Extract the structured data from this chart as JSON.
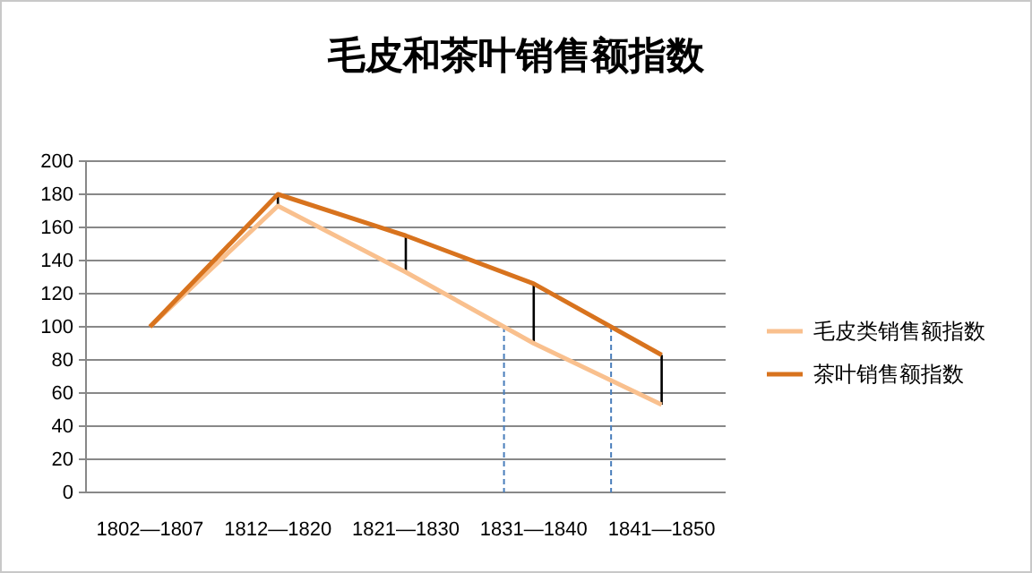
{
  "chart_data": {
    "type": "line",
    "title": "毛皮和茶叶销售额指数",
    "categories": [
      "1802—1807",
      "1812—1820",
      "1821—1830",
      "1831—1840",
      "1841—1850"
    ],
    "series": [
      {
        "name": "毛皮类销售额指数",
        "color": "#f9c08e",
        "values": [
          100,
          173,
          133,
          90,
          53
        ]
      },
      {
        "name": "茶叶销售额指数",
        "color": "#d8731e",
        "values": [
          100,
          180,
          155,
          126,
          83
        ]
      }
    ],
    "ylim": [
      0,
      200
    ],
    "yticks": [
      0,
      20,
      40,
      60,
      80,
      100,
      120,
      140,
      160,
      180,
      200
    ],
    "grid": "y",
    "legend": "right",
    "marker": "none",
    "line_style": "solid"
  }
}
